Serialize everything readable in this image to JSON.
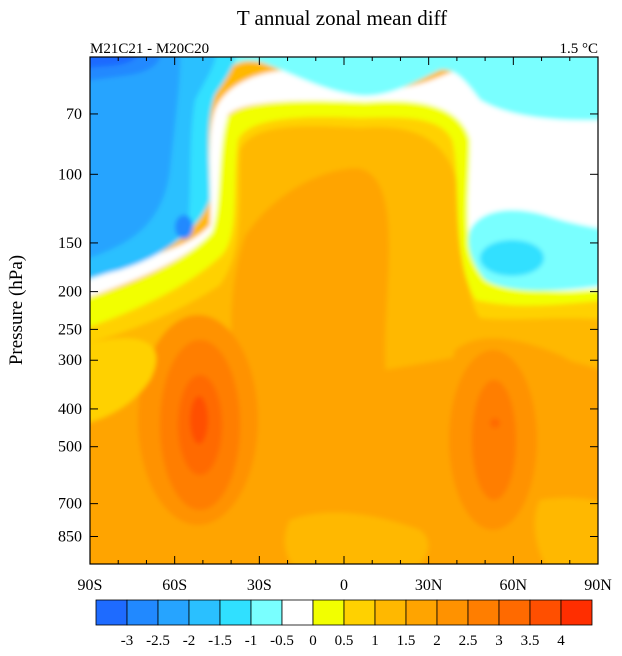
{
  "chart_data": {
    "type": "heatmap",
    "title": "T annual zonal mean diff",
    "left_label": "M21C21 - M20C20",
    "right_label": "1.5 °C",
    "xlabel": "",
    "ylabel": "Pressure (hPa)",
    "x_ticks": [
      "90S",
      "60S",
      "30S",
      "0",
      "30N",
      "60N",
      "90N"
    ],
    "x_tick_values": [
      -90,
      -60,
      -30,
      0,
      30,
      60,
      90
    ],
    "y_ticks": [
      "70",
      "100",
      "150",
      "200",
      "250",
      "300",
      "400",
      "500",
      "700",
      "850"
    ],
    "y_tick_values": [
      70,
      100,
      150,
      200,
      250,
      300,
      400,
      500,
      700,
      850
    ],
    "xlim": [
      -90,
      90
    ],
    "ylim_hpa": [
      1000,
      50
    ],
    "y_scale": "log",
    "colorbar_levels": [
      "-3",
      "-2.5",
      "-2",
      "-1.5",
      "-1",
      "-0.5",
      "0",
      "0.5",
      "1",
      "1.5",
      "2",
      "2.5",
      "3",
      "3.5",
      "4"
    ],
    "colorbar_colors": [
      "#1e6bff",
      "#2189ff",
      "#26a4ff",
      "#2ac0ff",
      "#30e0ff",
      "#79ffff",
      "#ffffff",
      "#f2ff00",
      "#ffd100",
      "#ffb800",
      "#ffa400",
      "#ff9200",
      "#ff7e00",
      "#ff6a00",
      "#ff4f00",
      "#ff2e00"
    ],
    "regions": [
      {
        "feature": "strong cooling",
        "lat_range": [
          -90,
          -72
        ],
        "p_range_hpa": [
          50,
          65
        ],
        "value": -2.5
      },
      {
        "feature": "cooling",
        "lat_range": [
          -90,
          -45
        ],
        "p_range_hpa": [
          50,
          230
        ],
        "value": -1.5
      },
      {
        "feature": "local cooling minimum",
        "lat": -62,
        "p_hpa": 140,
        "value": -2
      },
      {
        "feature": "cooling",
        "lat_range": [
          -22,
          90
        ],
        "p_range_hpa": [
          50,
          65
        ],
        "value": -0.5
      },
      {
        "feature": "cooling",
        "lat_range": [
          40,
          90
        ],
        "p_range_hpa": [
          75,
          215
        ],
        "value": -0.75
      },
      {
        "feature": "local cooling minimum",
        "lat": 57,
        "p_hpa": 170,
        "value": -1
      },
      {
        "feature": "tropical upper warming",
        "lat_range": [
          -15,
          25
        ],
        "p_range_hpa": [
          160,
          600
        ],
        "value": 2
      },
      {
        "feature": "SH midlatitude warming maximum",
        "lat": -52,
        "p_hpa": 430,
        "value": 3.5
      },
      {
        "feature": "NH midlatitude warming maximum",
        "lat": 55,
        "p_hpa": 440,
        "value": 3
      }
    ]
  }
}
